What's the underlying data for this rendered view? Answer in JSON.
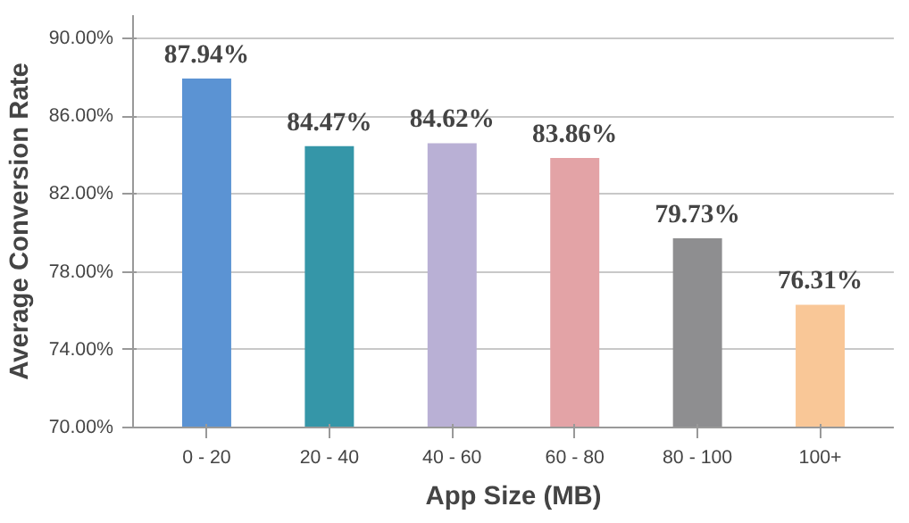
{
  "chart_data": {
    "type": "bar",
    "xlabel": "App Size (MB)",
    "ylabel": "Average Conversion Rate",
    "categories": [
      "0 - 20",
      "20 - 40",
      "40 - 60",
      "60 - 80",
      "80 - 100",
      "100+"
    ],
    "values": [
      87.94,
      84.47,
      84.62,
      83.86,
      79.73,
      76.31
    ],
    "colors": [
      "#5b93d3",
      "#3596a8",
      "#b9b0d5",
      "#e3a3a6",
      "#8e8e90",
      "#f9c797"
    ],
    "value_labels": [
      "87.94%",
      "84.47%",
      "84.62%",
      "83.86%",
      "79.73%",
      "76.31%"
    ],
    "ylim": [
      70,
      90
    ],
    "yticks": [
      {
        "value": 70,
        "label": "70.00%"
      },
      {
        "value": 74,
        "label": "74.00%"
      },
      {
        "value": 78,
        "label": "78.00%"
      },
      {
        "value": 82,
        "label": "82.00%"
      },
      {
        "value": 86,
        "label": "86.00%"
      },
      {
        "value": 90,
        "label": "90.00%"
      }
    ],
    "grid": "y"
  }
}
